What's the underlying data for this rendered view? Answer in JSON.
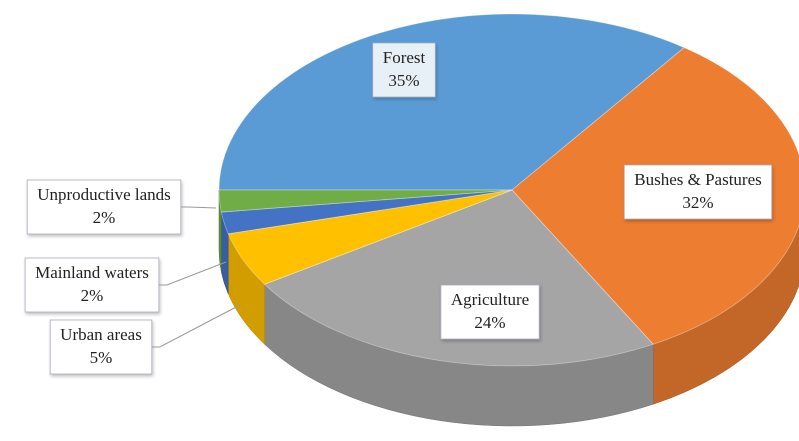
{
  "chart_data": {
    "type": "pie",
    "categories": [
      "Forest",
      "Bushes & Pastures",
      "Agriculture",
      "Urban areas",
      "Mainland waters",
      "Unproductive lands"
    ],
    "values": [
      35,
      32,
      24,
      5,
      2,
      2
    ],
    "value_labels": [
      "35%",
      "32%",
      "24%",
      "5%",
      "2%",
      "2%"
    ],
    "colors": [
      "#5b9bd5",
      "#ed7d31",
      "#a5a5a5",
      "#ffc000",
      "#4472c4",
      "#70ad47"
    ]
  }
}
